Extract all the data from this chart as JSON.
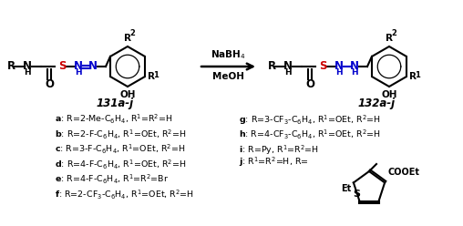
{
  "bg_color": "#ffffff",
  "lw": 1.5,
  "blue": "#0000cc",
  "red": "#cc0000",
  "black": "#000000",
  "left_label": "131a-j",
  "right_label": "132a-j",
  "arrow_top": "NaBH$_4$",
  "arrow_bottom": "MeOH",
  "left_compounds": [
    "a: R=2-Me-C$_6$H$_4$, R$^1$=R$^2$=H",
    "b: R=2-F-C$_6$H$_4$, R$^1$=OEt, R$^2$=H",
    "c: R=3-F-C$_6$H$_4$, R$^1$=OEt, R$^2$=H",
    "d: R=4-F-C$_6$H$_4$, R$^1$=OEt, R$^2$=H",
    "e: R=4-F-C$_6$H$_4$, R$^1$=R$^2$=Br",
    "f: R=2-CF$_3$-C$_6$H$_4$, R$^1$=OEt, R$^2$=H"
  ],
  "right_compounds": [
    "g: R=3-CF$_3$-C$_6$H$_4$, R$^1$=OEt, R$^2$=H",
    "h: R=4-CF$_3$-C$_6$H$_4$, R$^1$=OEt, R$^2$=H",
    "i: R=Py, R$^1$=R$^2$=H"
  ],
  "compound_j": "j: R$^1$=R$^2$=H, R="
}
